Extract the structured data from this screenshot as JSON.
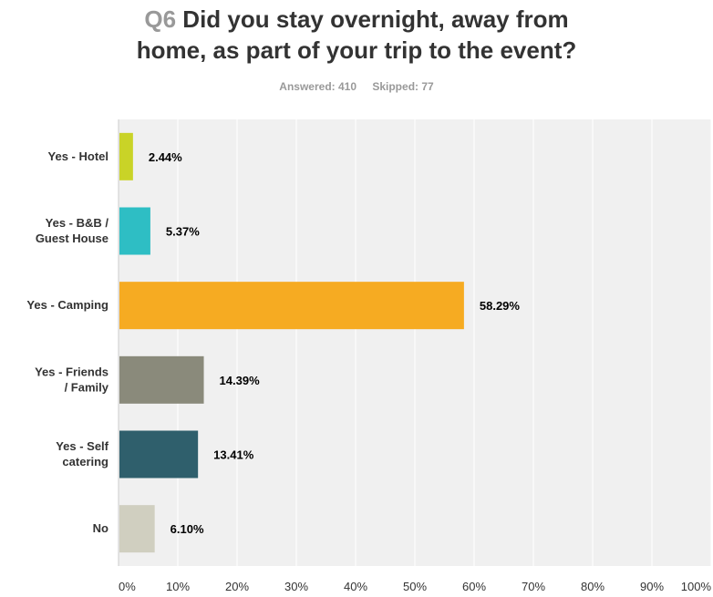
{
  "question": {
    "number": "Q6",
    "text_line1": "Did you stay overnight, away from",
    "text_line2": "home, as part of your trip to the event?"
  },
  "stats": {
    "answered": "Answered: 410",
    "skipped": "Skipped: 77"
  },
  "chart_data": {
    "type": "bar",
    "orientation": "horizontal",
    "categories": [
      [
        "Yes - Hotel"
      ],
      [
        "Yes - B&B /",
        "Guest House"
      ],
      [
        "Yes - Camping"
      ],
      [
        "Yes - Friends",
        "/ Family"
      ],
      [
        "Yes - Self",
        "catering"
      ],
      [
        "No"
      ]
    ],
    "values": [
      2.44,
      5.37,
      58.29,
      14.39,
      13.41,
      6.1
    ],
    "value_labels": [
      "2.44%",
      "5.37%",
      "58.29%",
      "14.39%",
      "13.41%",
      "6.10%"
    ],
    "colors": [
      "#c9d327",
      "#2ebec4",
      "#f6ab22",
      "#8a8a7b",
      "#2f5f6c",
      "#d0cfc0"
    ],
    "xlim": [
      0,
      100
    ],
    "x_ticks": [
      "0%",
      "10%",
      "20%",
      "30%",
      "40%",
      "50%",
      "60%",
      "70%",
      "80%",
      "90%",
      "100%"
    ],
    "grid": true,
    "plot_background": "#f0f0f0",
    "grid_color": "#ffffff"
  }
}
